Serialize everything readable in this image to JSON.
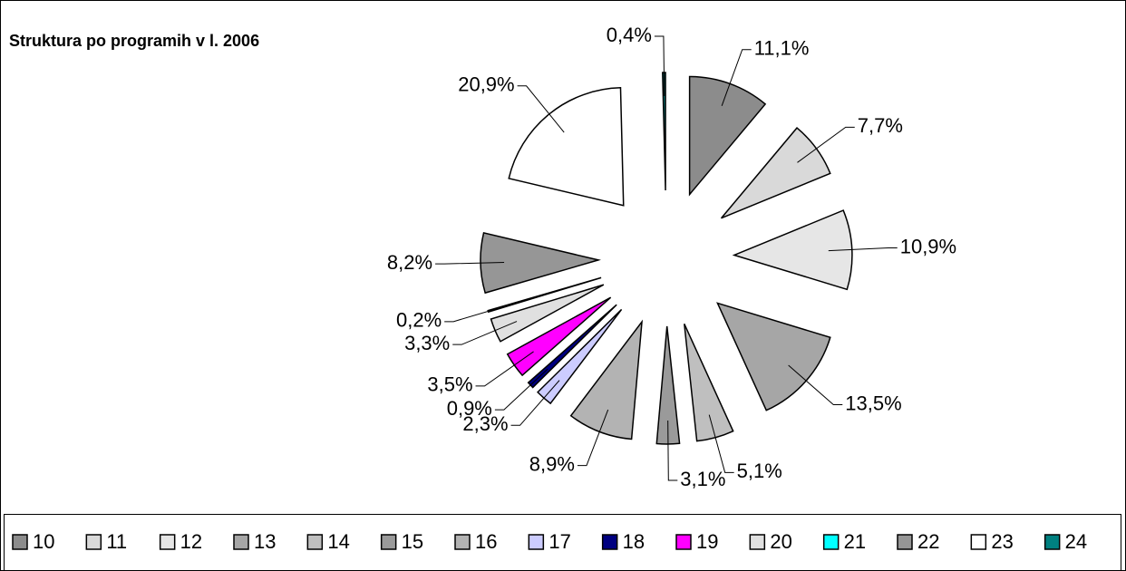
{
  "chart_data": {
    "type": "pie",
    "title": "Struktura po programih v l. 2006",
    "categories": [
      "10",
      "11",
      "12",
      "13",
      "14",
      "15",
      "16",
      "17",
      "18",
      "19",
      "20",
      "21",
      "22",
      "23",
      "24"
    ],
    "values": [
      11.1,
      7.7,
      10.9,
      13.5,
      5.1,
      3.1,
      8.9,
      2.3,
      0.9,
      3.5,
      3.3,
      0.2,
      8.2,
      20.9,
      0.4
    ],
    "value_labels": [
      "11,1%",
      "7,7%",
      "10,9%",
      "13,5%",
      "5,1%",
      "3,1%",
      "8,9%",
      "2,3%",
      "0,9%",
      "3,5%",
      "3,3%",
      "0,2%",
      "8,2%",
      "20,9%",
      "0,4%"
    ],
    "colors": [
      "#8c8c8c",
      "#d9d9d9",
      "#e6e6e6",
      "#a6a6a6",
      "#bfbfbf",
      "#9a9a9a",
      "#b3b3b3",
      "#ccccff",
      "#000080",
      "#ff00ff",
      "#e0e0e0",
      "#00ffff",
      "#969696",
      "#ffffff",
      "#008080"
    ],
    "legend": "bottom"
  }
}
